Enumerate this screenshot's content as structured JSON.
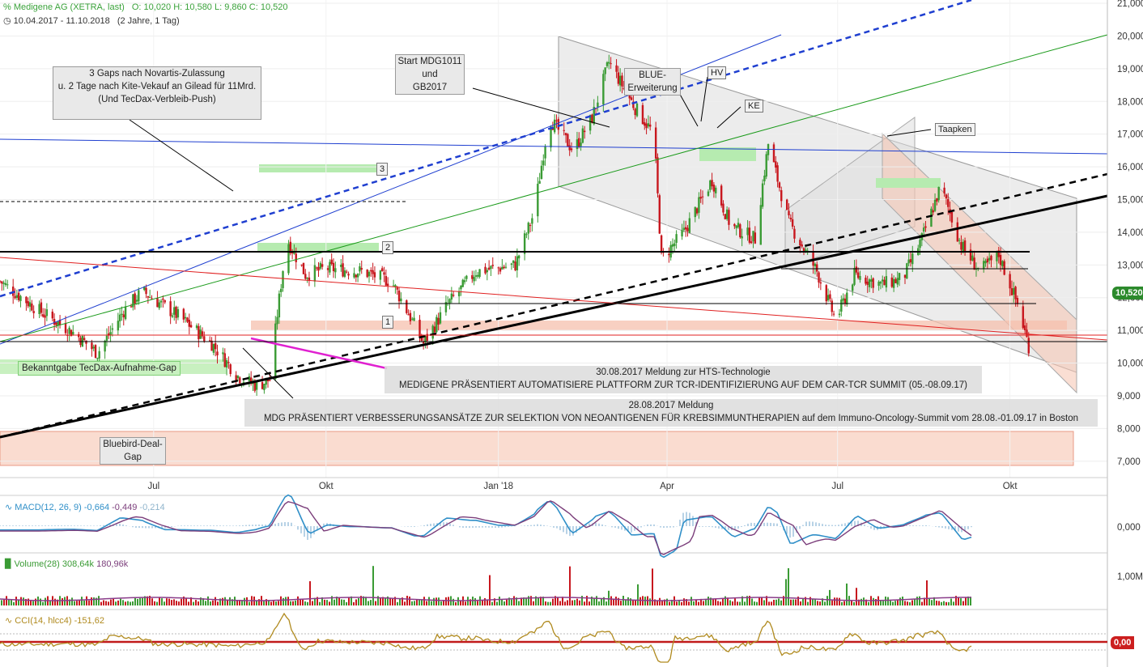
{
  "header": {
    "title": "Medigene AG (XETRA, last)",
    "ohlc": "O: 10,020  H: 10,580  L: 9,860  C: 10,520",
    "range": "10.04.2017 - 11.10.2018",
    "interval": "(2 Jahre, 1 Tag)"
  },
  "colors": {
    "up": "#3a9b34",
    "down": "#c8171e",
    "macd": "#2f8fc8",
    "signal": "#7b3e7b",
    "cci": "#b08a1e",
    "last_price_bg": "#2c8a2c",
    "zero_bg": "#cc1f1f"
  },
  "annotations": {
    "gaps_novartis": "3 Gaps nach Novartis-Zulassung\nu. 2 Tage nach Kite-Vekauf an Gilead für 11Mrd.\n(Und TecDax-Verbleib-Push)",
    "start_mdg": "Start MDG1011\nund\nGB2017",
    "blue_erw": "BLUE-\nErweiterung",
    "hv": "HV",
    "ke": "KE",
    "taapken": "Taapken",
    "tecdax_gap": "Bekanntgabe TecDax-Aufnahme-Gap",
    "bluebird_gap": "Bluebird-Deal-\nGap",
    "gap1": "1",
    "gap2": "2",
    "gap3": "3",
    "hts_line1": "30.08.2017 Meldung zur HTS-Technologie",
    "hts_line2": "MEDIGENE PRÄSENTIERT AUTOMATISIERE PLATTFORM ZUR TCR-IDENTIFIZIERUNG AUF DEM CAR-TCR SUMMIT (05.-08.09.17)",
    "neo_line1": "28.08.2017 Meldung",
    "neo_line2": "MDG PRÄSENTIERT VERBESSERUNGSANSÄTZE ZUR SELEKTION VON NEOANTIGENEN FÜR KREBSIMMUNTHERAPIEN auf dem Immuno-Oncology-Summit vom 28.08.-01.09.17 in Boston"
  },
  "panels": {
    "macd_label": "MACD(12, 26, 9)",
    "macd_v1": "-0,664",
    "macd_v2": "-0,449",
    "macd_v3": "-0,214",
    "volume_label": "Volume(28)",
    "volume_v1": "308,64k",
    "volume_v2": "180,96k",
    "cci_label": "CCI(14, hlcc4)",
    "cci_v1": "-151,62",
    "last_price": "10,520",
    "zero_value": "0,00"
  },
  "chart_data": {
    "type": "candlestick",
    "x_labels": [
      "Jul",
      "Okt",
      "Jan '18",
      "Apr",
      "Jul",
      "Okt"
    ],
    "x_label_dates": [
      "2017-07-01",
      "2017-10-01",
      "2018-01-01",
      "2018-04-01",
      "2018-07-01",
      "2018-10-01"
    ],
    "date_range": [
      "2017-04-10",
      "2018-10-11"
    ],
    "y_ticks": [
      "7,000",
      "8,000",
      "9,000",
      "10,000",
      "11,000",
      "12,000",
      "13,000",
      "14,000",
      "15,000",
      "16,000",
      "17,000",
      "18,000",
      "19,000",
      "20,000",
      "21,000"
    ],
    "y_values": [
      7,
      8,
      9,
      10,
      11,
      12,
      13,
      14,
      15,
      16,
      17,
      18,
      19,
      20,
      21
    ],
    "ylim": [
      6.5,
      21.1
    ],
    "close_path": [
      {
        "date": "2017-04-10",
        "close": 12.5
      },
      {
        "date": "2017-05-01",
        "close": 11.6
      },
      {
        "date": "2017-05-20",
        "close": 10.9
      },
      {
        "date": "2017-06-01",
        "close": 10.3
      },
      {
        "date": "2017-06-15",
        "close": 11.6
      },
      {
        "date": "2017-06-25",
        "close": 12.2
      },
      {
        "date": "2017-07-15",
        "close": 11.4
      },
      {
        "date": "2017-08-01",
        "close": 10.6
      },
      {
        "date": "2017-08-15",
        "close": 9.6
      },
      {
        "date": "2017-08-25",
        "close": 9.3
      },
      {
        "date": "2017-09-01",
        "close": 9.5
      },
      {
        "date": "2017-09-05",
        "close": 11.5
      },
      {
        "date": "2017-09-10",
        "close": 13.8
      },
      {
        "date": "2017-09-20",
        "close": 12.7
      },
      {
        "date": "2017-10-01",
        "close": 12.9
      },
      {
        "date": "2017-10-20",
        "close": 12.8
      },
      {
        "date": "2017-11-05",
        "close": 12.5
      },
      {
        "date": "2017-11-15",
        "close": 11.4
      },
      {
        "date": "2017-11-22",
        "close": 10.6
      },
      {
        "date": "2017-12-05",
        "close": 11.8
      },
      {
        "date": "2017-12-20",
        "close": 12.8
      },
      {
        "date": "2018-01-10",
        "close": 13.0
      },
      {
        "date": "2018-01-20",
        "close": 14.6
      },
      {
        "date": "2018-01-28",
        "close": 17.5
      },
      {
        "date": "2018-02-10",
        "close": 16.5
      },
      {
        "date": "2018-02-20",
        "close": 17.5
      },
      {
        "date": "2018-03-01",
        "close": 19.2
      },
      {
        "date": "2018-03-15",
        "close": 17.8
      },
      {
        "date": "2018-03-25",
        "close": 17.0
      },
      {
        "date": "2018-03-29",
        "close": 13.2
      },
      {
        "date": "2018-04-10",
        "close": 14.0
      },
      {
        "date": "2018-04-25",
        "close": 15.6
      },
      {
        "date": "2018-05-05",
        "close": 14.2
      },
      {
        "date": "2018-05-18",
        "close": 13.8
      },
      {
        "date": "2018-05-25",
        "close": 16.7
      },
      {
        "date": "2018-06-05",
        "close": 14.3
      },
      {
        "date": "2018-06-20",
        "close": 12.8
      },
      {
        "date": "2018-06-30",
        "close": 11.3
      },
      {
        "date": "2018-07-10",
        "close": 12.7
      },
      {
        "date": "2018-07-25",
        "close": 12.4
      },
      {
        "date": "2018-08-05",
        "close": 12.6
      },
      {
        "date": "2018-08-15",
        "close": 13.8
      },
      {
        "date": "2018-08-25",
        "close": 15.4
      },
      {
        "date": "2018-09-05",
        "close": 13.6
      },
      {
        "date": "2018-09-15",
        "close": 12.8
      },
      {
        "date": "2018-09-25",
        "close": 13.3
      },
      {
        "date": "2018-10-05",
        "close": 11.8
      },
      {
        "date": "2018-10-11",
        "close": 10.52
      }
    ],
    "levels": [
      12.0,
      11.6,
      11.1,
      10.25,
      9.4
    ],
    "macd_zero": "0,000",
    "volume_tick": "1,00M",
    "cci_zero": "0,00"
  }
}
